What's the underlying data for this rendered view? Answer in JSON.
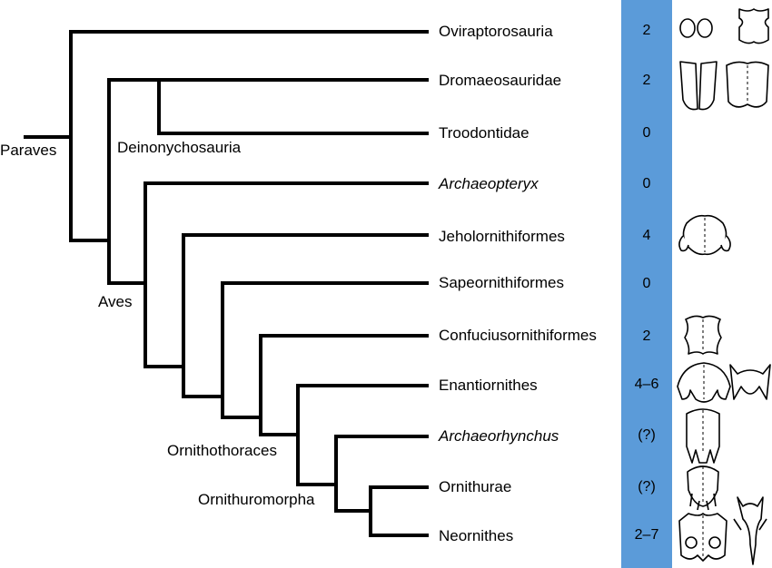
{
  "taxa": [
    {
      "name": "Oviraptorosauria",
      "italic": false,
      "count": "2"
    },
    {
      "name": "Dromaeosauridae",
      "italic": false,
      "count": "2"
    },
    {
      "name": "Troodontidae",
      "italic": false,
      "count": "0"
    },
    {
      "name": "Archaeopteryx",
      "italic": true,
      "count": "0"
    },
    {
      "name": "Jeholornithiformes",
      "italic": false,
      "count": "4"
    },
    {
      "name": "Sapeornithiformes",
      "italic": false,
      "count": "0"
    },
    {
      "name": "Confuciusornithiformes",
      "italic": false,
      "count": "2"
    },
    {
      "name": "Enantiornithes",
      "italic": false,
      "count": "4–6"
    },
    {
      "name": "Archaeorhynchus",
      "italic": true,
      "count": "(?)"
    },
    {
      "name": "Ornithurae",
      "italic": false,
      "count": "(?)"
    },
    {
      "name": "Neornithes",
      "italic": false,
      "count": "2–7"
    }
  ],
  "clades": {
    "paraves": "Paraves",
    "deinonychosauria": "Deinonychosauria",
    "aves": "Aves",
    "ornithothoraces": "Ornithothoraces",
    "ornithuromorpha": "Ornithuromorpha"
  },
  "colors": {
    "column": "#5b9bd9",
    "branch": "#000000"
  },
  "icons": [
    "paired-oval-sternal-plates-icon",
    "fused-sternum-icon",
    "paired-sternal-plates-icon",
    "sternum-midline-icon",
    "jeholornis-sternum-icon",
    "confuciusornis-sternum-icon",
    "enantiornithine-sternum-icon",
    "enantiornithine-sternum-alt-icon",
    "archaeorhynchus-sternum-icon",
    "ornithurine-sternum-icon",
    "neornithine-sternum-icon",
    "neornithine-keeled-sternum-icon"
  ]
}
